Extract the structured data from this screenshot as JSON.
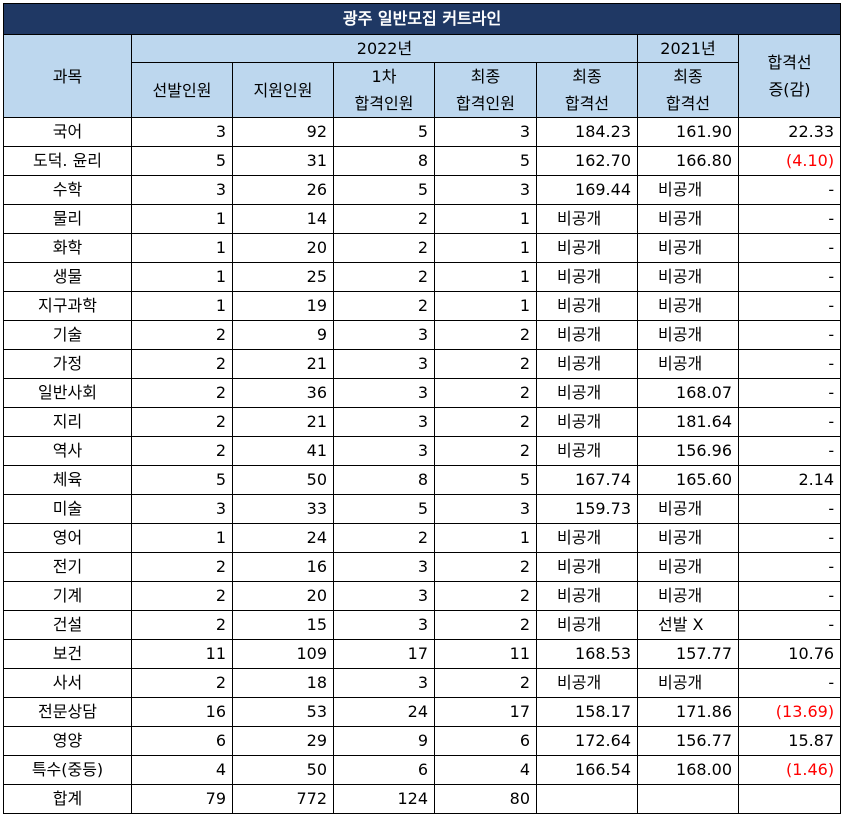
{
  "title": "광주 일반모집 커트라인",
  "header": {
    "subject": "과목",
    "year2022": "2022년",
    "year2021": "2021년",
    "change_line1": "합격선",
    "change_line2": "증(감)",
    "cols2022": [
      {
        "l1": "선발인원",
        "l2": ""
      },
      {
        "l1": "지원인원",
        "l2": ""
      },
      {
        "l1": "1차",
        "l2": "합격인원"
      },
      {
        "l1": "최종",
        "l2": "합격인원"
      },
      {
        "l1": "최종",
        "l2": "합격선"
      }
    ],
    "col2021_l1": "최종",
    "col2021_l2": "합격선"
  },
  "rows": [
    {
      "subject": "국어",
      "select": "3",
      "apply": "92",
      "pass1": "5",
      "final": "3",
      "cut2022": "184.23",
      "cut2021": "161.90",
      "change": "22.33",
      "neg": false
    },
    {
      "subject": "도덕. 윤리",
      "select": "5",
      "apply": "31",
      "pass1": "8",
      "final": "5",
      "cut2022": "162.70",
      "cut2021": "166.80",
      "change": "(4.10)",
      "neg": true
    },
    {
      "subject": "수학",
      "select": "3",
      "apply": "26",
      "pass1": "5",
      "final": "3",
      "cut2022": "169.44",
      "cut2021": "비공개",
      "change": "-",
      "neg": false
    },
    {
      "subject": "물리",
      "select": "1",
      "apply": "14",
      "pass1": "2",
      "final": "1",
      "cut2022": "비공개",
      "cut2021": "비공개",
      "change": "-",
      "neg": false
    },
    {
      "subject": "화학",
      "select": "1",
      "apply": "20",
      "pass1": "2",
      "final": "1",
      "cut2022": "비공개",
      "cut2021": "비공개",
      "change": "-",
      "neg": false
    },
    {
      "subject": "생물",
      "select": "1",
      "apply": "25",
      "pass1": "2",
      "final": "1",
      "cut2022": "비공개",
      "cut2021": "비공개",
      "change": "-",
      "neg": false
    },
    {
      "subject": "지구과학",
      "select": "1",
      "apply": "19",
      "pass1": "2",
      "final": "1",
      "cut2022": "비공개",
      "cut2021": "비공개",
      "change": "-",
      "neg": false
    },
    {
      "subject": "기술",
      "select": "2",
      "apply": "9",
      "pass1": "3",
      "final": "2",
      "cut2022": "비공개",
      "cut2021": "비공개",
      "change": "-",
      "neg": false
    },
    {
      "subject": "가정",
      "select": "2",
      "apply": "21",
      "pass1": "3",
      "final": "2",
      "cut2022": "비공개",
      "cut2021": "비공개",
      "change": "-",
      "neg": false
    },
    {
      "subject": "일반사회",
      "select": "2",
      "apply": "36",
      "pass1": "3",
      "final": "2",
      "cut2022": "비공개",
      "cut2021": "168.07",
      "change": "-",
      "neg": false
    },
    {
      "subject": "지리",
      "select": "2",
      "apply": "21",
      "pass1": "3",
      "final": "2",
      "cut2022": "비공개",
      "cut2021": "181.64",
      "change": "-",
      "neg": false
    },
    {
      "subject": "역사",
      "select": "2",
      "apply": "41",
      "pass1": "3",
      "final": "2",
      "cut2022": "비공개",
      "cut2021": "156.96",
      "change": "-",
      "neg": false
    },
    {
      "subject": "체육",
      "select": "5",
      "apply": "50",
      "pass1": "8",
      "final": "5",
      "cut2022": "167.74",
      "cut2021": "165.60",
      "change": "2.14",
      "neg": false
    },
    {
      "subject": "미술",
      "select": "3",
      "apply": "33",
      "pass1": "5",
      "final": "3",
      "cut2022": "159.73",
      "cut2021": "비공개",
      "change": "-",
      "neg": false
    },
    {
      "subject": "영어",
      "select": "1",
      "apply": "24",
      "pass1": "2",
      "final": "1",
      "cut2022": "비공개",
      "cut2021": "비공개",
      "change": "-",
      "neg": false
    },
    {
      "subject": "전기",
      "select": "2",
      "apply": "16",
      "pass1": "3",
      "final": "2",
      "cut2022": "비공개",
      "cut2021": "비공개",
      "change": "-",
      "neg": false
    },
    {
      "subject": "기계",
      "select": "2",
      "apply": "20",
      "pass1": "3",
      "final": "2",
      "cut2022": "비공개",
      "cut2021": "비공개",
      "change": "-",
      "neg": false
    },
    {
      "subject": "건설",
      "select": "2",
      "apply": "15",
      "pass1": "3",
      "final": "2",
      "cut2022": "비공개",
      "cut2021": "선발 X",
      "change": "-",
      "neg": false
    },
    {
      "subject": "보건",
      "select": "11",
      "apply": "109",
      "pass1": "17",
      "final": "11",
      "cut2022": "168.53",
      "cut2021": "157.77",
      "change": "10.76",
      "neg": false
    },
    {
      "subject": "사서",
      "select": "2",
      "apply": "18",
      "pass1": "3",
      "final": "2",
      "cut2022": "비공개",
      "cut2021": "비공개",
      "change": "-",
      "neg": false
    },
    {
      "subject": "전문상담",
      "select": "16",
      "apply": "53",
      "pass1": "24",
      "final": "17",
      "cut2022": "158.17",
      "cut2021": "171.86",
      "change": "(13.69)",
      "neg": true
    },
    {
      "subject": "영양",
      "select": "6",
      "apply": "29",
      "pass1": "9",
      "final": "6",
      "cut2022": "172.64",
      "cut2021": "156.77",
      "change": "15.87",
      "neg": false
    },
    {
      "subject": "특수(중등)",
      "select": "4",
      "apply": "50",
      "pass1": "6",
      "final": "4",
      "cut2022": "166.54",
      "cut2021": "168.00",
      "change": "(1.46)",
      "neg": true
    },
    {
      "subject": "합계",
      "select": "79",
      "apply": "772",
      "pass1": "124",
      "final": "80",
      "cut2022": "",
      "cut2021": "",
      "change": "",
      "neg": false
    }
  ],
  "colors": {
    "title_bg": "#1f3864",
    "header_bg": "#bdd7ee",
    "negative": "#ff0000"
  }
}
